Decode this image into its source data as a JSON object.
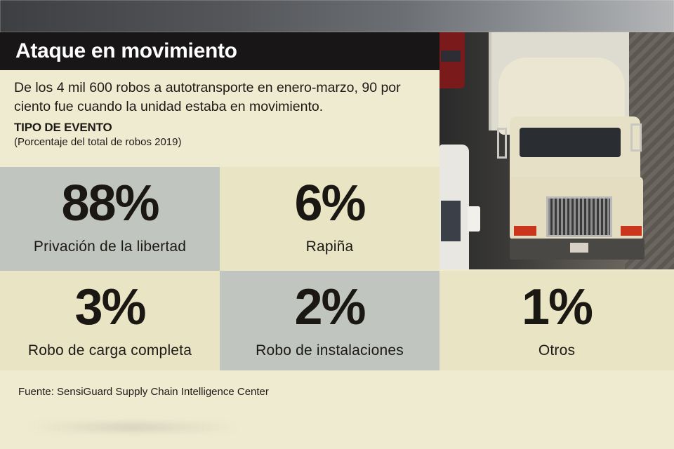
{
  "header": {
    "title": "Ataque en movimiento"
  },
  "intro": {
    "description": "De los 4 mil 600 robos a autotransporte en enero-marzo, 90 por ciento fue cuando la unidad estaba en movimiento.",
    "event_title": "TIPO DE EVENTO",
    "event_subtitle": "(Porcentaje del total de robos 2019)"
  },
  "stats": [
    {
      "value": "88%",
      "label": "Privación de la libertad"
    },
    {
      "value": "6%",
      "label": "Rapiña"
    },
    {
      "value": "3%",
      "label": "Robo de carga completa"
    },
    {
      "value": "2%",
      "label": "Robo de instalaciones"
    },
    {
      "value": "1%",
      "label": "Otros"
    }
  ],
  "colors": {
    "title_bar": "#181616",
    "gray_cell": "#c0c5bf",
    "cream_cell": "#e9e4c3",
    "background": "#efebd1"
  },
  "footer": {
    "source": "Fuente: SensiGuard Supply Chain Intelligence Center"
  }
}
